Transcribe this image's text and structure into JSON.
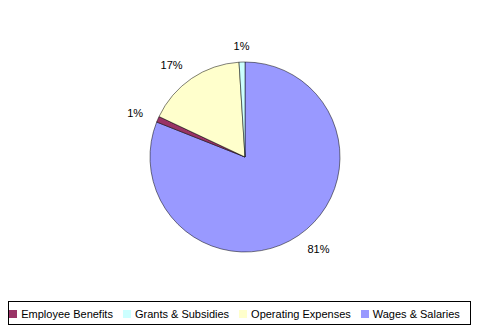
{
  "chart_data": {
    "type": "pie",
    "categories": [
      "Wages & Salaries",
      "Employee Benefits",
      "Operating Expenses",
      "Grants & Subsidies"
    ],
    "values": [
      81,
      1,
      17,
      1
    ],
    "value_labels": [
      "81%",
      "1%",
      "17%",
      "1%"
    ],
    "colors": [
      "#9999ff",
      "#993366",
      "#ffffcc",
      "#ccffff"
    ],
    "data_labels": true,
    "legend": "bottom"
  }
}
